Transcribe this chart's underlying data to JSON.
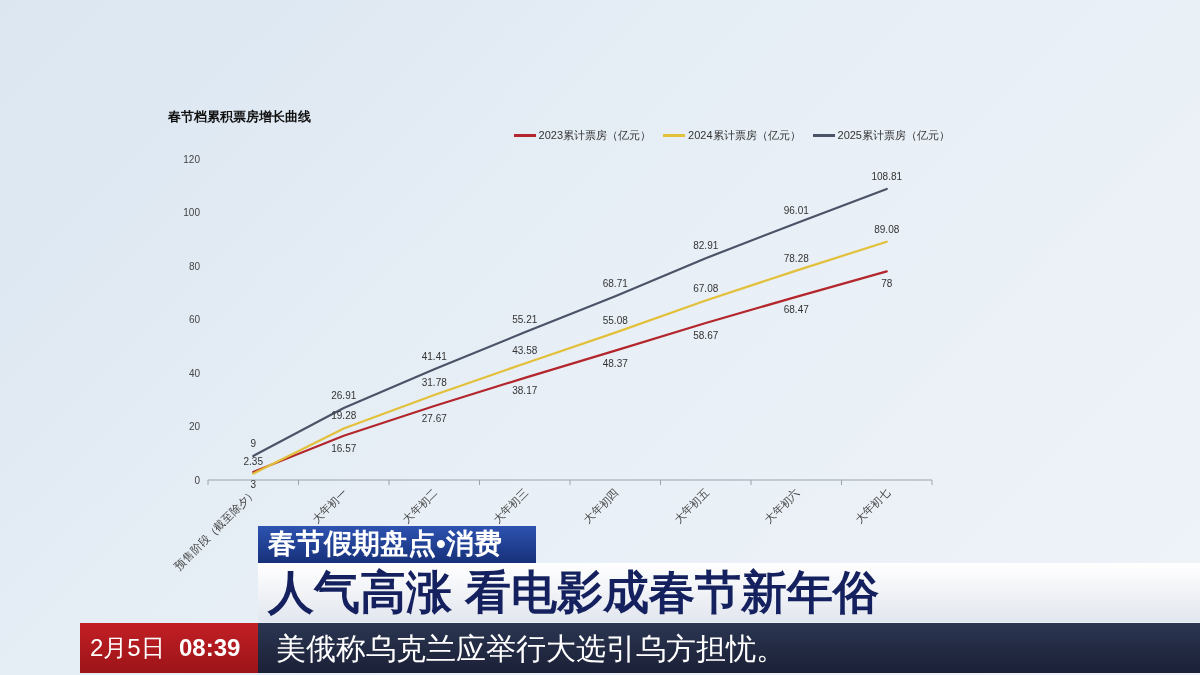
{
  "chart_data": {
    "type": "line",
    "title": "春节档累积票房增长曲线",
    "categories": [
      "预售阶段（截至除夕）",
      "大年初一",
      "大年初二",
      "大年初三",
      "大年初四",
      "大年初五",
      "大年初六",
      "大年初七"
    ],
    "series": [
      {
        "name": "2023累计票房（亿元）",
        "color": "#b3262c",
        "values": [
          3,
          16.57,
          27.67,
          38.17,
          48.37,
          58.67,
          68.47,
          78
        ]
      },
      {
        "name": "2024累计票房（亿元）",
        "color": "#e3c03a",
        "values": [
          2.35,
          19.28,
          31.78,
          43.58,
          55.08,
          67.08,
          78.28,
          89.08
        ]
      },
      {
        "name": "2025累计票房（亿元）",
        "color": "#4b5366",
        "values": [
          9,
          26.91,
          41.41,
          55.21,
          68.71,
          82.91,
          96.01,
          108.81
        ]
      }
    ],
    "ylim": [
      0,
      120
    ],
    "yticks": [
      0,
      20,
      40,
      60,
      80,
      100,
      120
    ],
    "grid": false,
    "legend": "top right",
    "marker": "none",
    "line_style": "solid",
    "data_labels": true,
    "annotations": [
      "春节假期盘点•消费",
      "人气高涨 看电影成春节新年俗",
      "2月5日",
      "08:39",
      "美俄称乌克兰应举行大选引乌方担忧。"
    ]
  }
}
